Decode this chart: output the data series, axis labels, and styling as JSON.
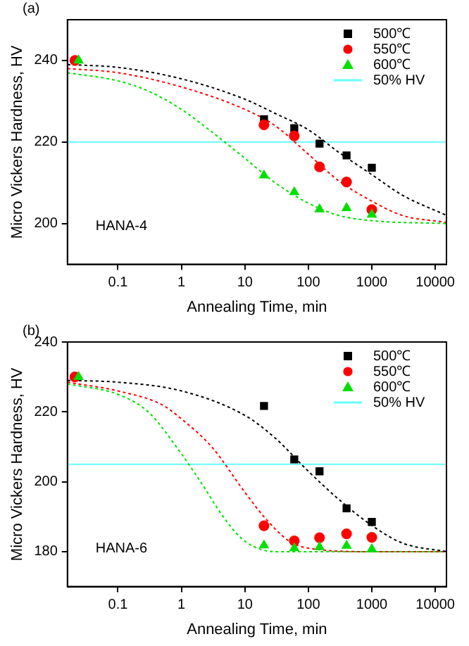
{
  "chart_data": [
    {
      "type": "scatter",
      "xlabel": "Annealing Time, min",
      "ylabel": "Micro Vickers Hardness, HV",
      "log": "x",
      "xlim": [
        0.016,
        15000
      ],
      "xticks": [
        0.1,
        1,
        10,
        100,
        1000,
        10000
      ],
      "ylim": [
        190,
        250
      ],
      "yticks": [
        200,
        220,
        240
      ],
      "grid": false,
      "legend": "top right",
      "annotations": [
        "(a)",
        "HANA-4"
      ],
      "ref_lines": [
        {
          "axis": "y",
          "value": 220,
          "label": "50% HV",
          "color": "#66ffff"
        }
      ],
      "series": [
        {
          "name": "500℃",
          "type": "scatter",
          "marker": "square",
          "color": "#000000",
          "x": [
            20,
            60,
            150,
            400,
            1000
          ],
          "values": [
            225.6,
            223.4,
            219.6,
            216.7,
            213.7
          ]
        },
        {
          "name": "550℃",
          "type": "scatter",
          "marker": "circle",
          "color": "#ff0000",
          "x": [
            0.021,
            20,
            60,
            150,
            400,
            1000
          ],
          "values": [
            240,
            224.2,
            221.5,
            213.9,
            210.2,
            203.4
          ]
        },
        {
          "name": "600℃",
          "type": "scatter",
          "marker": "triangle",
          "color": "#00e000",
          "x": [
            0.024,
            20,
            60,
            150,
            400,
            1000
          ],
          "values": [
            240,
            211.8,
            207.7,
            203.5,
            203.8,
            202.2
          ]
        },
        {
          "type": "line",
          "marker": "none",
          "line_style": "dotted",
          "color": "#000000",
          "x": [
            0.016,
            0.1,
            1,
            10,
            30,
            100,
            300,
            1000,
            3000,
            15000
          ],
          "values": [
            239,
            238.3,
            235.5,
            230.5,
            227,
            223,
            217.5,
            212,
            207,
            202
          ]
        },
        {
          "type": "line",
          "marker": "none",
          "line_style": "dotted",
          "color": "#ff0000",
          "x": [
            0.016,
            0.1,
            1,
            10,
            30,
            100,
            300,
            1000,
            3000,
            15000
          ],
          "values": [
            238,
            237,
            233.5,
            228,
            224,
            217,
            210.5,
            205.5,
            202,
            200.3
          ]
        },
        {
          "type": "line",
          "marker": "none",
          "line_style": "dotted",
          "color": "#00e000",
          "x": [
            0.016,
            0.1,
            0.3,
            1,
            3,
            10,
            30,
            100,
            300,
            1000,
            15000
          ],
          "values": [
            237,
            235,
            232.5,
            228,
            222.5,
            216,
            210,
            205,
            202,
            200.7,
            200
          ]
        }
      ]
    },
    {
      "type": "scatter",
      "xlabel": "Annealing Time, min",
      "ylabel": "Micro Vickers Hardness, HV",
      "log": "x",
      "xlim": [
        0.016,
        15000
      ],
      "xticks": [
        0.1,
        1,
        10,
        100,
        1000,
        10000
      ],
      "ylim": [
        170,
        240
      ],
      "yticks": [
        180,
        200,
        220,
        240
      ],
      "grid": false,
      "legend": "top right",
      "annotations": [
        "(b)",
        "HANA-6"
      ],
      "ref_lines": [
        {
          "axis": "y",
          "value": 205,
          "label": "50% HV",
          "color": "#66ffff"
        }
      ],
      "series": [
        {
          "name": "500℃",
          "type": "scatter",
          "marker": "square",
          "color": "#000000",
          "x": [
            20,
            60,
            150,
            400,
            1000
          ],
          "values": [
            221.7,
            206.4,
            203,
            192.4,
            188.5
          ]
        },
        {
          "name": "550℃",
          "type": "scatter",
          "marker": "circle",
          "color": "#ff0000",
          "x": [
            0.021,
            20,
            60,
            150,
            400,
            1000
          ],
          "values": [
            230,
            187.4,
            183.1,
            184,
            185.1,
            184.1
          ]
        },
        {
          "name": "600℃",
          "type": "scatter",
          "marker": "triangle",
          "color": "#00e000",
          "x": [
            0.024,
            20,
            60,
            150,
            400,
            1000
          ],
          "values": [
            230,
            181.8,
            181,
            181.3,
            181.7,
            180.7
          ]
        },
        {
          "type": "line",
          "marker": "none",
          "line_style": "dotted",
          "color": "#000000",
          "x": [
            0.016,
            0.1,
            1,
            10,
            30,
            100,
            300,
            1000,
            3000,
            15000
          ],
          "values": [
            229,
            228.5,
            226,
            219,
            212.5,
            203,
            195,
            187.5,
            182.5,
            180
          ]
        },
        {
          "type": "line",
          "marker": "none",
          "line_style": "dotted",
          "color": "#ff0000",
          "x": [
            0.016,
            0.1,
            0.5,
            1,
            3,
            10,
            20,
            50,
            100,
            1000,
            15000
          ],
          "values": [
            228.5,
            226,
            222,
            218,
            210,
            197,
            190,
            183,
            181,
            180,
            180
          ]
        },
        {
          "type": "line",
          "marker": "none",
          "line_style": "dotted",
          "color": "#00e000",
          "x": [
            0.016,
            0.1,
            0.3,
            1,
            2,
            5,
            10,
            30,
            15000
          ],
          "values": [
            228,
            225,
            220,
            208,
            200,
            189,
            183,
            180,
            180
          ]
        }
      ]
    }
  ]
}
